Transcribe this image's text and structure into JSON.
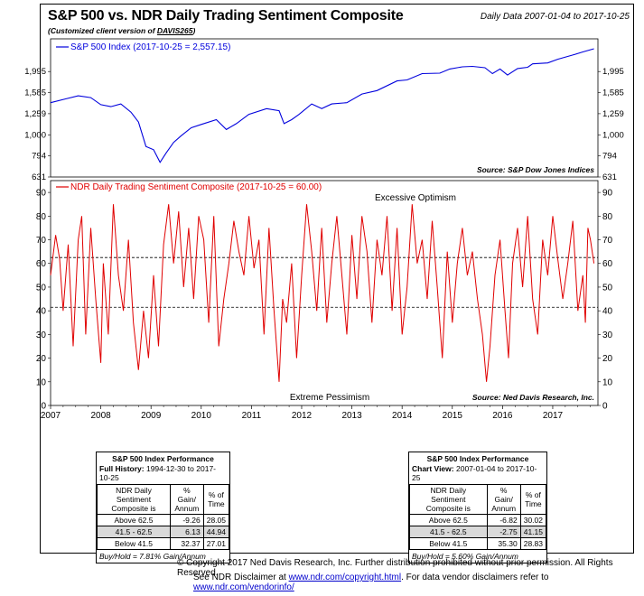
{
  "title": "S&P 500 vs. NDR Daily Trading Sentiment Composite",
  "subtitle_prefix": "(Customized client version of ",
  "subtitle_link": "DAVIS265",
  "subtitle_suffix": ")",
  "date_range": "Daily Data 2007-01-04 to 2017-10-25",
  "colors": {
    "sp500": "#0000dd",
    "sentiment": "#e00000"
  },
  "chart_data": [
    {
      "type": "line",
      "scale": "log",
      "legend": "S&P 500 Index (2017-10-25 = 2,557.15)",
      "source": "Source:   S&P Dow Jones Indices",
      "ylim": [
        631,
        2557
      ],
      "y_ticks": [
        631,
        794,
        1000,
        1259,
        1585,
        1995
      ],
      "y_tick_labels": [
        "631",
        "794",
        "1,000",
        "1,259",
        "1,585",
        "1,995"
      ],
      "x": [
        2007.0,
        2007.3,
        2007.55,
        2007.8,
        2008.0,
        2008.2,
        2008.4,
        2008.6,
        2008.75,
        2008.9,
        2009.05,
        2009.18,
        2009.3,
        2009.45,
        2009.6,
        2009.8,
        2010.0,
        2010.3,
        2010.5,
        2010.7,
        2010.95,
        2011.3,
        2011.55,
        2011.65,
        2011.8,
        2011.95,
        2012.2,
        2012.4,
        2012.6,
        2012.9,
        2013.2,
        2013.5,
        2013.9,
        2014.1,
        2014.4,
        2014.75,
        2014.95,
        2015.2,
        2015.4,
        2015.65,
        2015.8,
        2015.95,
        2016.1,
        2016.3,
        2016.5,
        2016.6,
        2016.9,
        2017.1,
        2017.4,
        2017.6,
        2017.82
      ],
      "values": [
        1420,
        1480,
        1530,
        1500,
        1390,
        1360,
        1400,
        1280,
        1150,
        880,
        850,
        740,
        820,
        920,
        990,
        1080,
        1120,
        1180,
        1060,
        1130,
        1250,
        1330,
        1300,
        1130,
        1180,
        1250,
        1400,
        1330,
        1400,
        1420,
        1560,
        1620,
        1800,
        1820,
        1950,
        1960,
        2050,
        2100,
        2110,
        2080,
        1950,
        2050,
        1920,
        2060,
        2090,
        2170,
        2190,
        2280,
        2390,
        2470,
        2557
      ]
    },
    {
      "type": "line",
      "legend": "NDR Daily Trading Sentiment Composite (2017-10-25 = 60.00)",
      "source": "Source:   Ned Davis Research, Inc.",
      "top_label": "Excessive Optimism",
      "bottom_label": "Extreme Pessimism",
      "ylim": [
        0,
        95
      ],
      "y_ticks": [
        0,
        10,
        20,
        30,
        40,
        50,
        60,
        70,
        80,
        90
      ],
      "y_tick_labels": [
        "0",
        "10",
        "20",
        "30",
        "40",
        "50",
        "60",
        "70",
        "80",
        "90"
      ],
      "thresholds": [
        62.5,
        41.5
      ],
      "x_ticks": [
        "2007",
        "2008",
        "2009",
        "2010",
        "2011",
        "2012",
        "2013",
        "2014",
        "2015",
        "2016",
        "2017"
      ],
      "x": [
        2007.0,
        2007.1,
        2007.18,
        2007.25,
        2007.35,
        2007.45,
        2007.55,
        2007.62,
        2007.7,
        2007.8,
        2007.9,
        2008.0,
        2008.05,
        2008.15,
        2008.25,
        2008.35,
        2008.45,
        2008.55,
        2008.65,
        2008.75,
        2008.85,
        2008.95,
        2009.05,
        2009.15,
        2009.25,
        2009.35,
        2009.45,
        2009.55,
        2009.65,
        2009.75,
        2009.85,
        2009.95,
        2010.05,
        2010.15,
        2010.25,
        2010.35,
        2010.45,
        2010.55,
        2010.65,
        2010.75,
        2010.85,
        2010.95,
        2011.05,
        2011.15,
        2011.25,
        2011.35,
        2011.45,
        2011.55,
        2011.62,
        2011.7,
        2011.8,
        2011.9,
        2012.0,
        2012.1,
        2012.2,
        2012.3,
        2012.4,
        2012.5,
        2012.6,
        2012.7,
        2012.8,
        2012.9,
        2013.0,
        2013.1,
        2013.2,
        2013.3,
        2013.4,
        2013.5,
        2013.6,
        2013.7,
        2013.8,
        2013.9,
        2014.0,
        2014.1,
        2014.2,
        2014.3,
        2014.4,
        2014.5,
        2014.6,
        2014.7,
        2014.8,
        2014.9,
        2015.0,
        2015.1,
        2015.2,
        2015.3,
        2015.4,
        2015.5,
        2015.6,
        2015.68,
        2015.75,
        2015.85,
        2015.95,
        2016.05,
        2016.12,
        2016.2,
        2016.3,
        2016.4,
        2016.5,
        2016.6,
        2016.7,
        2016.8,
        2016.9,
        2017.0,
        2017.1,
        2017.2,
        2017.3,
        2017.4,
        2017.5,
        2017.6,
        2017.65,
        2017.7,
        2017.75,
        2017.82
      ],
      "values": [
        55,
        72,
        62,
        40,
        68,
        25,
        70,
        80,
        30,
        75,
        45,
        18,
        60,
        30,
        85,
        55,
        40,
        70,
        35,
        15,
        40,
        20,
        55,
        25,
        68,
        85,
        60,
        82,
        50,
        75,
        45,
        80,
        70,
        35,
        80,
        25,
        45,
        60,
        78,
        65,
        55,
        80,
        58,
        70,
        30,
        75,
        40,
        10,
        45,
        35,
        60,
        20,
        55,
        85,
        65,
        40,
        75,
        35,
        60,
        80,
        55,
        30,
        72,
        45,
        80,
        65,
        35,
        70,
        55,
        80,
        40,
        75,
        30,
        50,
        85,
        60,
        70,
        45,
        78,
        50,
        20,
        65,
        35,
        60,
        75,
        55,
        65,
        45,
        30,
        10,
        25,
        55,
        70,
        40,
        20,
        60,
        75,
        50,
        80,
        45,
        30,
        70,
        55,
        80,
        62,
        45,
        60,
        78,
        40,
        55,
        35,
        75,
        70,
        60
      ]
    }
  ],
  "left_table": {
    "title": "S&P 500 Index Performance",
    "period_label": "Full History:",
    "period": "1994-12-30 to 2017-10-25",
    "col1a": "NDR Daily Sentiment",
    "col1b": "Composite is",
    "col2a": "% Gain/",
    "col2b": "Annum",
    "col3a": "% of",
    "col3b": "Time",
    "rows": [
      {
        "label": "Above 62.5",
        "gain": "-9.26",
        "time": "28.05"
      },
      {
        "label": "41.5 - 62.5",
        "gain": "6.13",
        "time": "44.94"
      },
      {
        "label": "Below 41.5",
        "gain": "32.37",
        "time": "27.01"
      }
    ],
    "footer": "Buy/Hold = 7.81% Gain/Annum"
  },
  "right_table": {
    "title": "S&P 500 Index Performance",
    "period_label": "Chart View:",
    "period": "2007-01-04 to 2017-10-25",
    "col1a": "NDR Daily Sentiment",
    "col1b": "Composite is",
    "col2a": "% Gain/",
    "col2b": "Annum",
    "col3a": "% of",
    "col3b": "Time",
    "rows": [
      {
        "label": "Above 62.5",
        "gain": "-6.82",
        "time": "30.02"
      },
      {
        "label": "41.5 - 62.5",
        "gain": "-2.75",
        "time": "41.15"
      },
      {
        "label": "Below 41.5",
        "gain": "35.30",
        "time": "28.83"
      }
    ],
    "footer": "Buy/Hold = 5.60% Gain/Annum"
  },
  "footer": {
    "line1": "© Copyright 2017 Ned Davis Research, Inc. Further distribution prohibited without prior permission. All Rights Reserved.",
    "line2_a": "See NDR Disclaimer at ",
    "link1": "www.ndr.com/copyright.html",
    "line2_b": ". For data vendor disclaimers refer to ",
    "link2": "www.ndr.com/vendorinfo/"
  }
}
